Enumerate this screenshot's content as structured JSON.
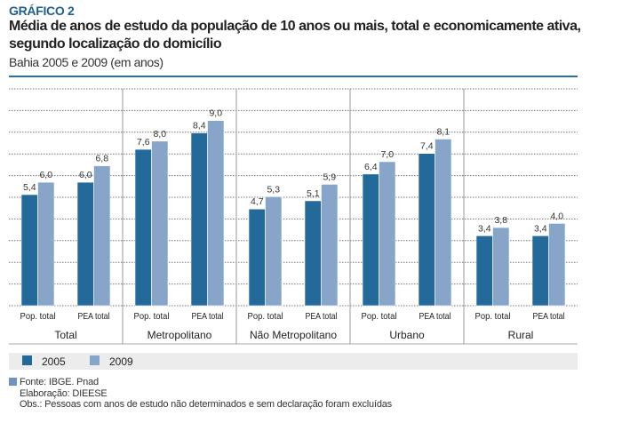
{
  "header": {
    "kicker": "GRÁFICO 2",
    "title": "Média de anos de estudo da população de 10 anos ou mais, total e economicamente ativa, segundo localização do domicílio",
    "subtitle": "Bahia 2005 e 2009 (em anos)"
  },
  "chart_data": {
    "type": "bar",
    "title": "Média de anos de estudo da população de 10 anos ou mais, total e economicamente ativa, segundo localização do domicílio",
    "subtitle": "Bahia 2005 e 2009 (em anos)",
    "groups": [
      {
        "label": "Total",
        "categories": [
          {
            "label": "Pop. total",
            "values": [
              5.4,
              6.0
            ],
            "labels": [
              "5,4",
              "6,0"
            ]
          },
          {
            "label": "PEA total",
            "values": [
              6.0,
              6.8
            ],
            "labels": [
              "6,0",
              "6,8"
            ]
          }
        ]
      },
      {
        "label": "Metropolitano",
        "categories": [
          {
            "label": "Pop. total",
            "values": [
              7.6,
              8.0
            ],
            "labels": [
              "7,6",
              "8,0"
            ]
          },
          {
            "label": "PEA total",
            "values": [
              8.4,
              9.0
            ],
            "labels": [
              "8,4",
              "9,0"
            ]
          }
        ]
      },
      {
        "label": "Não Metropolitano",
        "categories": [
          {
            "label": "Pop. total",
            "values": [
              4.7,
              5.3
            ],
            "labels": [
              "4,7",
              "5,3"
            ]
          },
          {
            "label": "PEA total",
            "values": [
              5.1,
              5.9
            ],
            "labels": [
              "5,1",
              "5,9"
            ]
          }
        ]
      },
      {
        "label": "Urbano",
        "categories": [
          {
            "label": "Pop. total",
            "values": [
              6.4,
              7.0
            ],
            "labels": [
              "6,4",
              "7,0"
            ]
          },
          {
            "label": "PEA total",
            "values": [
              7.4,
              8.1
            ],
            "labels": [
              "7,4",
              "8,1"
            ]
          }
        ]
      },
      {
        "label": "Rural",
        "categories": [
          {
            "label": "Pop. total",
            "values": [
              3.4,
              3.8
            ],
            "labels": [
              "3,4",
              "3,8"
            ]
          },
          {
            "label": "PEA total",
            "values": [
              3.4,
              4.0
            ],
            "labels": [
              "3,4",
              "4,0"
            ]
          }
        ]
      }
    ],
    "series": [
      {
        "name": "2005",
        "color": "#236a9b"
      },
      {
        "name": "2009",
        "color": "#87a5c8"
      }
    ],
    "ylim": [
      0,
      10.5
    ],
    "grid": true,
    "legend": "bottom-left",
    "xlabel": "",
    "ylabel": ""
  },
  "footer": {
    "source": "Fonte: IBGE. Pnad",
    "elaboration": "Elaboração: DIEESE",
    "note": "Obs.:  Pessoas com anos de estudo não determinados e sem declaração foram excluídas"
  }
}
